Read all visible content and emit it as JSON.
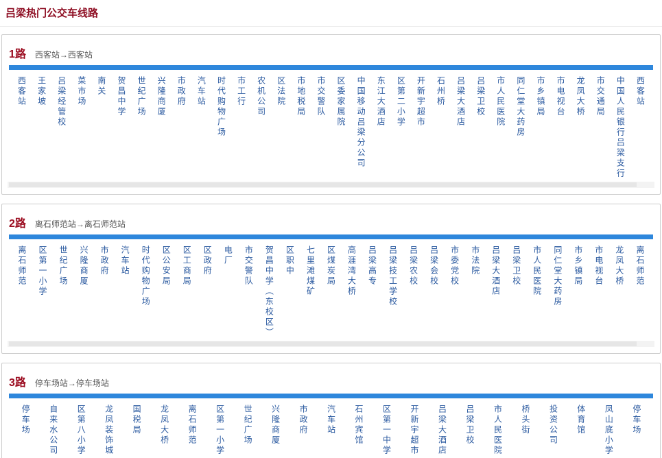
{
  "page": {
    "title": "吕梁热门公交车线路"
  },
  "colors": {
    "title_color": "#8e0e23",
    "route_number_color": "#9b0c20",
    "direction_color": "#555555",
    "bar_color": "#2e87dc",
    "station_color": "#2b5aa0",
    "card_border": "#cccccc",
    "scrollbar_track": "#f3f3f3",
    "scrollbar_thumb": "#e6e6e6"
  },
  "routes": [
    {
      "number": "1路",
      "direction": "西客站→西客站",
      "stations": [
        "西客站",
        "王家坡",
        "吕梁经管校",
        "菜市场",
        "南关",
        "贺昌中学",
        "世纪广场",
        "兴隆商厦",
        "市政府",
        "汽车站",
        "时代购物广场",
        "市工行",
        "农机公司",
        "区法院",
        "市地税局",
        "市交警队",
        "区委家属院",
        "中国移动吕梁分公司",
        "东江大酒店",
        "区第二小学",
        "开新宇超市",
        "石州桥",
        "吕梁大酒店",
        "吕梁卫校",
        "市人民医院",
        "同仁堂大药房",
        "市乡镇局",
        "市电视台",
        "龙凤大桥",
        "市交通局",
        "中国人民银行吕梁支行",
        "西客站"
      ]
    },
    {
      "number": "2路",
      "direction": "离石师范站→离石师范站",
      "stations": [
        "离石师范",
        "区第一小学",
        "世纪广场",
        "兴隆商厦",
        "市政府",
        "汽车站",
        "时代购物广场",
        "区公安局",
        "区工商局",
        "区政府",
        "电厂",
        "市交警队",
        "贺昌中学（东校区）",
        "区职中",
        "七里滩煤矿",
        "区煤炭局",
        "高涯湾大桥",
        "吕梁高专",
        "吕梁技工学校",
        "吕梁农校",
        "吕梁会校",
        "市委党校",
        "市法院",
        "吕梁大酒店",
        "吕梁卫校",
        "市人民医院",
        "同仁堂大药房",
        "市乡镇局",
        "市电视台",
        "龙凤大桥",
        "离石师范"
      ]
    },
    {
      "number": "3路",
      "direction": "停车场站→停车场站",
      "stations": [
        "停车场",
        "自来水公司",
        "区第八小学",
        "龙凤装饰城",
        "国税局",
        "龙凤大桥",
        "离石师范",
        "区第一小学",
        "世纪广场",
        "兴隆商厦",
        "市政府",
        "汽车站",
        "石州宾馆",
        "区第一中学",
        "开新宇超市",
        "吕梁大酒店",
        "吕梁卫校",
        "市人民医院",
        "桥头街",
        "投资公司",
        "体育馆",
        "凤山底小学",
        "停车场"
      ]
    }
  ]
}
